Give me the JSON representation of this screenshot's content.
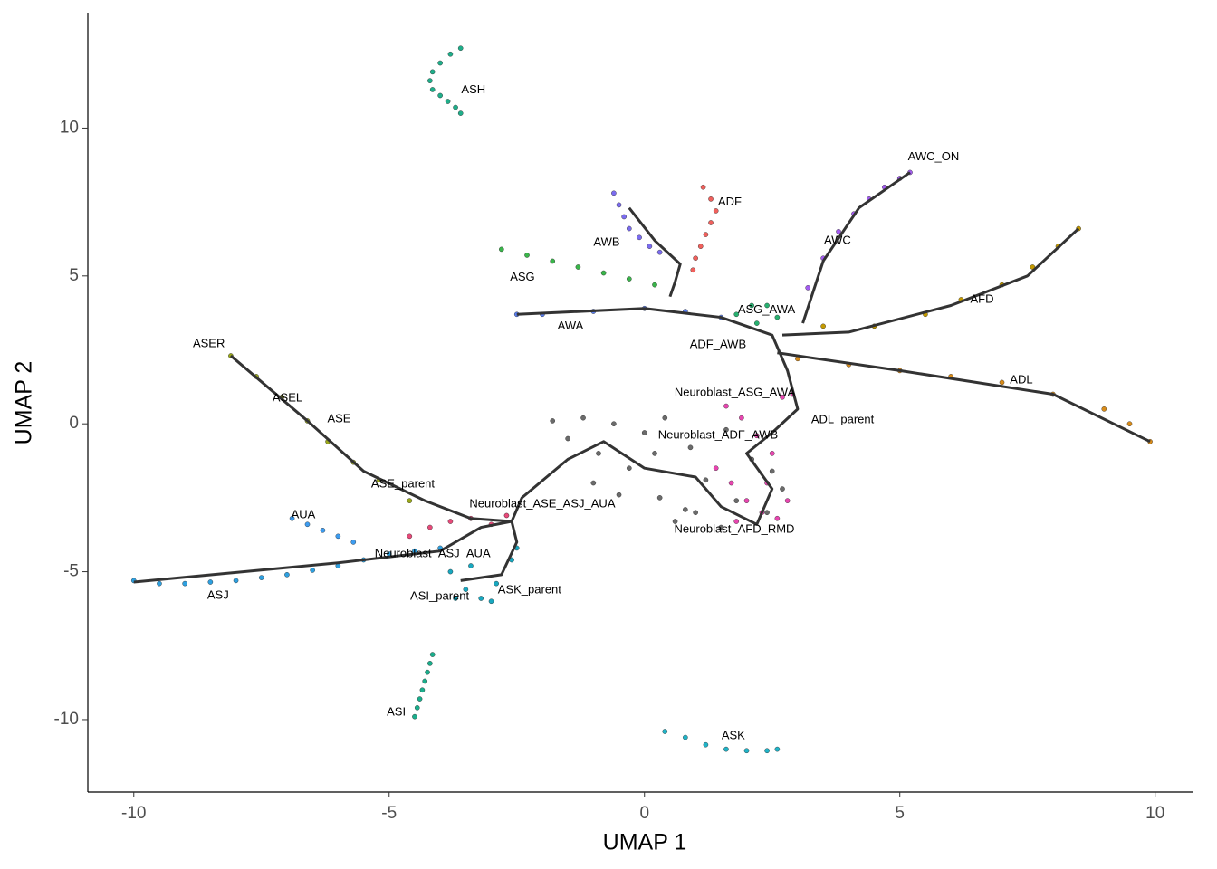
{
  "chart_data": {
    "type": "scatter",
    "x_label": "UMAP 1",
    "y_label": "UMAP 2",
    "xlim": [
      -10.9,
      10.75
    ],
    "ylim": [
      -12.45,
      13.9
    ],
    "xticks": [
      -10,
      -5,
      0,
      5,
      10
    ],
    "yticks": [
      -10,
      -5,
      0,
      5,
      10
    ],
    "series": [
      {
        "color": "#1fae8a",
        "x": [
          -3.6,
          -3.8,
          -4.0,
          -4.15,
          -4.2,
          -4.15,
          -4.0,
          -3.85,
          -3.7,
          -3.6
        ],
        "values": [
          12.7,
          12.5,
          12.2,
          11.9,
          11.6,
          11.3,
          11.1,
          10.9,
          10.7,
          10.5
        ]
      },
      {
        "color": "#a35cf0",
        "x": [
          3.2,
          3.5,
          3.8,
          4.1,
          4.4,
          4.7,
          5.0,
          5.2
        ],
        "values": [
          4.6,
          5.6,
          6.5,
          7.1,
          7.6,
          8.0,
          8.3,
          8.5
        ]
      },
      {
        "color": "#c49a00",
        "x": [
          3.5,
          4.5,
          5.5,
          6.2,
          7.0,
          7.6,
          8.1,
          8.5
        ],
        "values": [
          3.3,
          3.3,
          3.7,
          4.2,
          4.7,
          5.3,
          6.0,
          6.6
        ]
      },
      {
        "color": "#d98c1a",
        "x": [
          3,
          4,
          5,
          6,
          7,
          8,
          9,
          9.5,
          9.9
        ],
        "values": [
          2.2,
          2.0,
          1.8,
          1.6,
          1.4,
          1.0,
          0.5,
          0.0,
          -0.6
        ]
      },
      {
        "color": "#f0605c",
        "x": [
          1.15,
          1.3,
          1.4,
          1.3,
          1.2,
          1.1,
          1.0,
          0.95
        ],
        "values": [
          8.0,
          7.6,
          7.2,
          6.8,
          6.4,
          6.0,
          5.6,
          5.2
        ]
      },
      {
        "color": "#7b6cf0",
        "x": [
          -0.6,
          -0.5,
          -0.4,
          -0.3,
          -0.1,
          0.1,
          0.3
        ],
        "values": [
          7.8,
          7.4,
          7.0,
          6.6,
          6.3,
          6.0,
          5.8
        ]
      },
      {
        "color": "#3ab54a",
        "x": [
          -2.8,
          -2.3,
          -1.8,
          -1.3,
          -0.8,
          -0.3,
          0.2
        ],
        "values": [
          5.9,
          5.7,
          5.5,
          5.3,
          5.1,
          4.9,
          4.7
        ]
      },
      {
        "color": "#5b7ff0",
        "x": [
          -2.5,
          -2.0,
          -1.0,
          0.0,
          0.8,
          1.5
        ],
        "values": [
          3.7,
          3.7,
          3.8,
          3.9,
          3.8,
          3.6
        ]
      },
      {
        "color": "#28b070",
        "x": [
          1.8,
          2.1,
          2.4,
          2.6,
          2.2
        ],
        "values": [
          3.7,
          4.0,
          4.0,
          3.6,
          3.4
        ]
      },
      {
        "color": "#9aa81a",
        "x": [
          -8.1,
          -7.6,
          -7.1,
          -6.6,
          -6.2,
          -5.7,
          -5.2,
          -4.6
        ],
        "values": [
          2.3,
          1.6,
          0.9,
          0.1,
          -0.6,
          -1.3,
          -1.9,
          -2.6
        ]
      },
      {
        "color": "#3d9cf0",
        "x": [
          -6.9,
          -6.6,
          -6.3,
          -6.0,
          -5.7
        ],
        "values": [
          -3.2,
          -3.4,
          -3.6,
          -3.8,
          -4.0
        ]
      },
      {
        "color": "#2ea0e0",
        "x": [
          -10,
          -9.5,
          -9,
          -8.5,
          -8,
          -7.5,
          -7,
          -6.5,
          -6,
          -5.5,
          -5,
          -4.5,
          -4
        ],
        "values": [
          -5.3,
          -5.4,
          -5.4,
          -5.35,
          -5.3,
          -5.2,
          -5.1,
          -4.95,
          -4.8,
          -4.6,
          -4.4,
          -4.3,
          -4.2
        ]
      },
      {
        "color": "#20b4c8",
        "x": [
          0.4,
          0.8,
          1.2,
          1.6,
          2.0,
          2.4,
          2.6
        ],
        "values": [
          -10.4,
          -10.6,
          -10.85,
          -11.0,
          -11.05,
          -11.05,
          -11.0
        ]
      },
      {
        "color": "#1aae8c",
        "x": [
          -4.5,
          -4.45,
          -4.4,
          -4.35,
          -4.3,
          -4.25,
          -4.2,
          -4.15
        ],
        "values": [
          -9.9,
          -9.6,
          -9.3,
          -9.0,
          -8.7,
          -8.4,
          -8.1,
          -7.8
        ]
      },
      {
        "color": "#6b6b6b",
        "x": [
          -1.8,
          -1.5,
          -1.2,
          -0.9,
          -0.6,
          -0.3,
          0.0,
          0.3,
          0.6,
          0.9,
          1.2,
          1.5,
          1.8,
          2.1,
          2.4,
          2.7,
          -1.0,
          0.2,
          0.8,
          1.6,
          2.5,
          0.4,
          -0.5,
          1.0
        ],
        "values": [
          0.1,
          -0.5,
          0.2,
          -1.0,
          0.0,
          -1.5,
          -0.3,
          -2.5,
          -3.3,
          -0.8,
          -1.9,
          -3.5,
          -2.6,
          -1.2,
          -3.0,
          -2.2,
          -2.0,
          -1.0,
          -2.9,
          -0.2,
          -1.6,
          0.2,
          -2.4,
          -3.0
        ]
      },
      {
        "color": "#e845b0",
        "x": [
          1.4,
          1.7,
          2.0,
          2.3,
          2.6,
          2.8,
          2.5,
          2.2,
          1.9,
          1.6,
          2.7,
          2.9,
          2.4,
          1.8
        ],
        "values": [
          -1.5,
          -2.0,
          -2.6,
          -3.0,
          -3.2,
          -2.6,
          -1.0,
          -0.4,
          0.2,
          0.6,
          0.9,
          1.0,
          -2.0,
          -3.3
        ]
      },
      {
        "color": "#e84a7a",
        "x": [
          -4.6,
          -4.2,
          -3.8,
          -3.4,
          -3.0,
          -2.7
        ],
        "values": [
          -3.8,
          -3.5,
          -3.3,
          -3.2,
          -3.4,
          -3.1
        ]
      },
      {
        "color": "#18a8c0",
        "x": [
          -3.8,
          -3.5,
          -3.2,
          -2.9,
          -2.6,
          -3.4,
          -3.0,
          -2.5,
          -3.7
        ],
        "values": [
          -5.0,
          -5.6,
          -5.9,
          -5.4,
          -4.6,
          -4.8,
          -6.0,
          -4.2,
          -5.9
        ]
      }
    ],
    "lines": [
      {
        "color": "#333333",
        "x": [
          -10,
          -6,
          -4,
          -3.2,
          -2.6,
          -2.4,
          -1.5,
          -0.8,
          0,
          1,
          1.5,
          2.2,
          2.5,
          2.0,
          2.5,
          3.0,
          2.8,
          2.6,
          2.5,
          1.5,
          0,
          -2.5
        ],
        "values": [
          -5.35,
          -4.7,
          -4.3,
          -3.5,
          -3.3,
          -2.5,
          -1.2,
          -0.6,
          -1.5,
          -1.8,
          -2.8,
          -3.4,
          -2.2,
          -1.0,
          -0.3,
          0.5,
          1.8,
          2.6,
          3.0,
          3.6,
          3.9,
          3.7
        ]
      },
      {
        "color": "#333333",
        "x": [
          -8.1,
          -6.6,
          -5.5,
          -4.3,
          -3.4,
          -2.6
        ],
        "values": [
          2.3,
          0.1,
          -1.6,
          -2.6,
          -3.2,
          -3.3
        ]
      },
      {
        "color": "#333333",
        "x": [
          2.6,
          5,
          8,
          9.9
        ],
        "values": [
          2.4,
          1.8,
          1.0,
          -0.6
        ]
      },
      {
        "color": "#333333",
        "x": [
          2.7,
          4,
          6,
          7.5,
          8.5
        ],
        "values": [
          3.0,
          3.1,
          4.0,
          5.0,
          6.6
        ]
      },
      {
        "color": "#333333",
        "x": [
          3.1,
          3.5,
          4.2,
          5.2
        ],
        "values": [
          3.4,
          5.5,
          7.3,
          8.5
        ]
      },
      {
        "color": "#333333",
        "x": [
          -0.3,
          0.2,
          0.7,
          0.6,
          0.5
        ],
        "values": [
          7.3,
          6.2,
          5.4,
          4.8,
          4.3
        ]
      },
      {
        "color": "#333333",
        "x": [
          -3.6,
          -2.8,
          -2.5,
          -2.6
        ],
        "values": [
          -5.3,
          -5.1,
          -4.0,
          -3.3
        ]
      }
    ],
    "annotations": [
      {
        "text": "ASH",
        "x": -3.35,
        "y": 11.28
      },
      {
        "text": "AWC_ON",
        "x": 5.66,
        "y": 9.02
      },
      {
        "text": "ADF",
        "x": 1.67,
        "y": 7.49
      },
      {
        "text": "AWB",
        "x": -0.74,
        "y": 6.12
      },
      {
        "text": "AWC",
        "x": 3.78,
        "y": 6.18
      },
      {
        "text": "ASG",
        "x": -2.39,
        "y": 4.95
      },
      {
        "text": "AFD",
        "x": 6.61,
        "y": 4.19
      },
      {
        "text": "ASG_AWA",
        "x": 2.39,
        "y": 3.85
      },
      {
        "text": "AWA",
        "x": -1.45,
        "y": 3.3
      },
      {
        "text": "ADF_AWB",
        "x": 1.44,
        "y": 2.66
      },
      {
        "text": "ASER",
        "x": -8.53,
        "y": 2.69
      },
      {
        "text": "ADL",
        "x": 7.38,
        "y": 1.47
      },
      {
        "text": "Neuroblast_ASG_AWA",
        "x": 1.77,
        "y": 1.04
      },
      {
        "text": "ASEL",
        "x": -6.99,
        "y": 0.86
      },
      {
        "text": "ASE",
        "x": -5.98,
        "y": 0.15
      },
      {
        "text": "ADL_parent",
        "x": 3.88,
        "y": 0.12
      },
      {
        "text": "Neuroblast_ADF_AWB",
        "x": 1.44,
        "y": -0.4
      },
      {
        "text": "ASE_parent",
        "x": -4.73,
        "y": -2.05
      },
      {
        "text": "Neuroblast_ASE_ASJ_AUA",
        "x": -2.0,
        "y": -2.72
      },
      {
        "text": "AUA",
        "x": -6.68,
        "y": -3.09
      },
      {
        "text": "Neuroblast_AFD_RMD",
        "x": 1.76,
        "y": -3.58
      },
      {
        "text": "Neuroblast_ASJ_AUA",
        "x": -4.15,
        "y": -4.4
      },
      {
        "text": "ASK_parent",
        "x": -2.25,
        "y": -5.63
      },
      {
        "text": "ASJ",
        "x": -8.35,
        "y": -5.81
      },
      {
        "text": "ASI_parent",
        "x": -4.01,
        "y": -5.84
      },
      {
        "text": "ASK",
        "x": 1.74,
        "y": -10.55
      },
      {
        "text": "ASI",
        "x": -4.86,
        "y": -9.76
      }
    ]
  }
}
